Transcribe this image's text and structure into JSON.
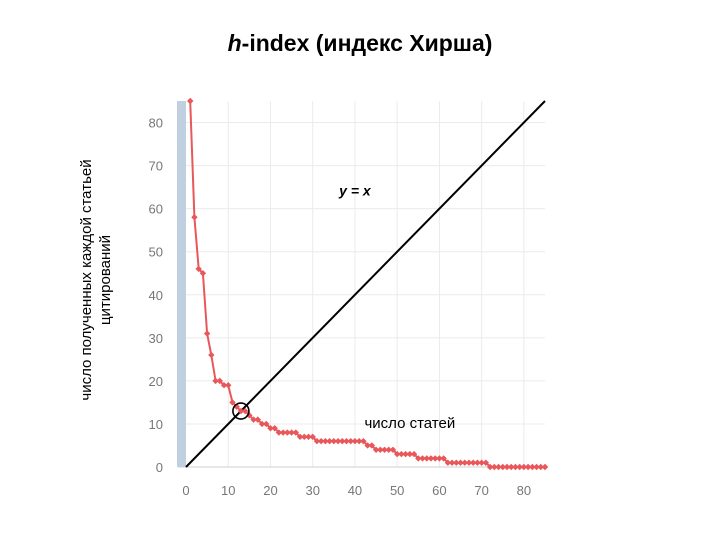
{
  "title": {
    "prefix": "h",
    "rest": "-index (индекс Хирша)"
  },
  "chart_data": {
    "type": "line",
    "ylabel": "число полученных каждой статьей цитирований",
    "xlabel": "",
    "xlim": [
      0,
      85
    ],
    "ylim": [
      0,
      85
    ],
    "x_ticks": [
      "0",
      "10",
      "20",
      "30",
      "40",
      "50",
      "60",
      "70",
      "80"
    ],
    "y_ticks": [
      "0",
      "10",
      "20",
      "30",
      "40",
      "50",
      "60",
      "70",
      "80"
    ],
    "grid": true,
    "series": [
      {
        "color": "#e8575a",
        "x": [
          1,
          2,
          3,
          4,
          5,
          6,
          7,
          8,
          9,
          10,
          11,
          12,
          13,
          14,
          15,
          16,
          17,
          18,
          19,
          20,
          21,
          22,
          23,
          24,
          25,
          26,
          27,
          28,
          29,
          30,
          31,
          32,
          33,
          34,
          35,
          36,
          37,
          38,
          39,
          40,
          41,
          42,
          43,
          44,
          45,
          46,
          47,
          48,
          49,
          50,
          51,
          52,
          53,
          54,
          55,
          56,
          57,
          58,
          59,
          60,
          61,
          62,
          63,
          64,
          65,
          66,
          67,
          68,
          69,
          70,
          71,
          72,
          73,
          74,
          75,
          76,
          77,
          78,
          79,
          80,
          81,
          82,
          83,
          84,
          85
        ],
        "values": [
          85,
          58,
          46,
          45,
          31,
          26,
          20,
          20,
          19,
          19,
          15,
          14,
          13,
          13,
          12,
          11,
          11,
          10,
          10,
          9,
          9,
          8,
          8,
          8,
          8,
          8,
          7,
          7,
          7,
          7,
          6,
          6,
          6,
          6,
          6,
          6,
          6,
          6,
          6,
          6,
          6,
          6,
          5,
          5,
          4,
          4,
          4,
          4,
          4,
          3,
          3,
          3,
          3,
          3,
          2,
          2,
          2,
          2,
          2,
          2,
          2,
          1,
          1,
          1,
          1,
          1,
          1,
          1,
          1,
          1,
          1,
          0,
          0,
          0,
          0,
          0,
          0,
          0,
          0,
          0,
          0,
          0,
          0,
          0,
          0
        ]
      },
      {
        "name": "y = x",
        "color": "#000000",
        "x": [
          0,
          85
        ],
        "values": [
          0,
          85
        ]
      }
    ],
    "annotations": [
      {
        "text": "y = x",
        "x": 40,
        "y": 63
      },
      {
        "text": "число статей",
        "x": 53,
        "y": 9
      }
    ],
    "h_index_marker": {
      "x": 13,
      "y": 13
    },
    "colors": {
      "series": "#e8575a",
      "axis_band": "#c0d0e0",
      "grid": "#ebebeb"
    }
  }
}
